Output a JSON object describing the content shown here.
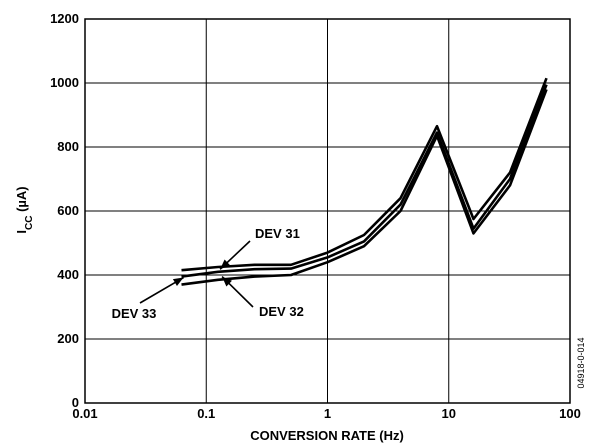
{
  "chart_data": {
    "type": "line",
    "xlabel": "CONVERSION RATE (Hz)",
    "ylabel": {
      "main": "I",
      "sub": "CC",
      "unit": " (µA)"
    },
    "xscale": "log",
    "xlim": [
      0.01,
      100
    ],
    "ylim": [
      0,
      1200
    ],
    "grid": true,
    "x_tick_labels": [
      "0.01",
      "0.1",
      "1",
      "10",
      "100"
    ],
    "y_tick_labels": [
      "0",
      "200",
      "400",
      "600",
      "800",
      "1000",
      "1200"
    ],
    "x": [
      0.0625,
      0.125,
      0.25,
      0.5,
      1,
      2,
      4,
      8,
      16,
      32,
      64
    ],
    "series": [
      {
        "name": "DEV 31",
        "values": [
          415,
          425,
          432,
          432,
          470,
          525,
          640,
          865,
          575,
          720,
          1015
        ]
      },
      {
        "name": "DEV 33",
        "values": [
          395,
          410,
          418,
          420,
          455,
          505,
          620,
          845,
          545,
          700,
          995
        ]
      },
      {
        "name": "DEV 32",
        "values": [
          370,
          385,
          395,
          400,
          440,
          490,
          600,
          835,
          530,
          680,
          980
        ]
      }
    ],
    "annotations": [
      {
        "text": "DEV 31",
        "target_x": 0.13,
        "target_y": 418
      },
      {
        "text": "DEV 32",
        "target_x": 0.135,
        "target_y": 395
      },
      {
        "text": "DEV 33",
        "target_x": 0.065,
        "target_y": 392
      }
    ],
    "figure_code": "04918-0-014"
  }
}
